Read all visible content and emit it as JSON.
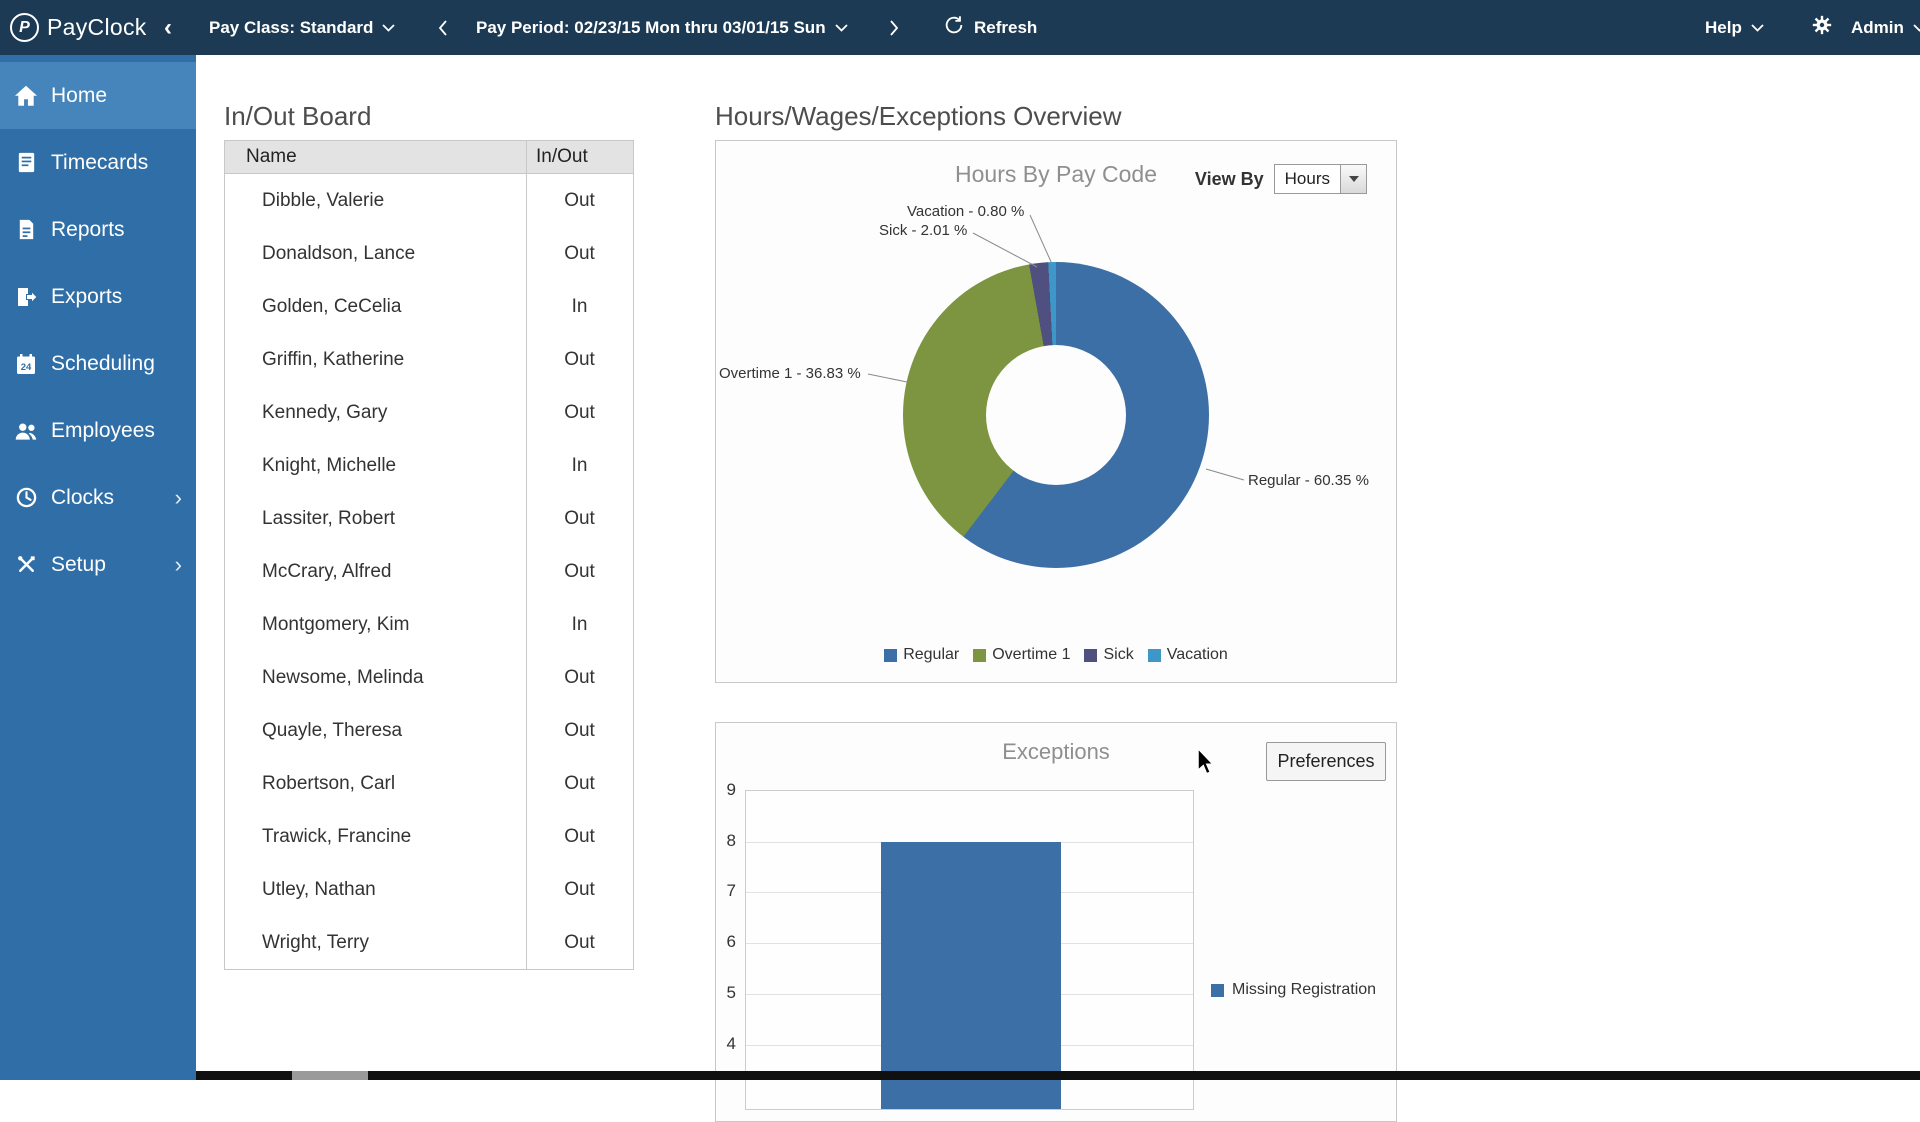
{
  "topbar": {
    "brand": "PayClock",
    "pay_class_label": "Pay Class: Standard",
    "pay_period_label": "Pay Period: 02/23/15 Mon thru 03/01/15 Sun",
    "refresh_label": "Refresh",
    "help_label": "Help",
    "admin_label": "Admin"
  },
  "sidebar": {
    "items": [
      {
        "label": "Home",
        "icon": "home-icon",
        "active": true,
        "chevron": false
      },
      {
        "label": "Timecards",
        "icon": "timecard-icon",
        "active": false,
        "chevron": false
      },
      {
        "label": "Reports",
        "icon": "reports-icon",
        "active": false,
        "chevron": false
      },
      {
        "label": "Exports",
        "icon": "export-icon",
        "active": false,
        "chevron": false
      },
      {
        "label": "Scheduling",
        "icon": "calendar-icon",
        "active": false,
        "chevron": false
      },
      {
        "label": "Employees",
        "icon": "employees-icon",
        "active": false,
        "chevron": false
      },
      {
        "label": "Clocks",
        "icon": "clock-icon",
        "active": false,
        "chevron": true
      },
      {
        "label": "Setup",
        "icon": "tools-icon",
        "active": false,
        "chevron": true
      }
    ]
  },
  "inout_board": {
    "title": "In/Out Board",
    "columns": [
      "Name",
      "In/Out"
    ],
    "rows": [
      {
        "name": "Dibble, Valerie",
        "status": "Out"
      },
      {
        "name": "Donaldson, Lance",
        "status": "Out"
      },
      {
        "name": "Golden, CeCelia",
        "status": "In"
      },
      {
        "name": "Griffin, Katherine",
        "status": "Out"
      },
      {
        "name": "Kennedy, Gary",
        "status": "Out"
      },
      {
        "name": "Knight, Michelle",
        "status": "In"
      },
      {
        "name": "Lassiter, Robert",
        "status": "Out"
      },
      {
        "name": "McCrary, Alfred",
        "status": "Out"
      },
      {
        "name": "Montgomery, Kim",
        "status": "In"
      },
      {
        "name": "Newsome, Melinda",
        "status": "Out"
      },
      {
        "name": "Quayle, Theresa",
        "status": "Out"
      },
      {
        "name": "Robertson, Carl",
        "status": "Out"
      },
      {
        "name": "Trawick, Francine",
        "status": "Out"
      },
      {
        "name": "Utley, Nathan",
        "status": "Out"
      },
      {
        "name": "Wright, Terry",
        "status": "Out"
      }
    ]
  },
  "overview": {
    "title": "Hours/Wages/Exceptions Overview",
    "view_by_label": "View By",
    "view_by_value": "Hours",
    "preferences_label": "Preferences"
  },
  "chart_data": [
    {
      "type": "pie",
      "donut": true,
      "title": "Hours By Pay Code",
      "labels": [
        "Regular",
        "Overtime 1",
        "Sick",
        "Vacation"
      ],
      "values": [
        60.35,
        36.83,
        2.01,
        0.8
      ],
      "unit": "%",
      "colors": [
        "#3c6fa5",
        "#7d9440",
        "#4f5080",
        "#3d97c9"
      ],
      "annotations": [
        "Regular - 60.35 %",
        "Overtime 1 - 36.83 %",
        "Sick - 2.01 %",
        "Vacation - 0.80 %"
      ],
      "legend_position": "bottom"
    },
    {
      "type": "bar",
      "title": "Exceptions",
      "categories": [
        "Missing Registration"
      ],
      "values": [
        8
      ],
      "colors": [
        "#3c6fa5"
      ],
      "yticks": [
        9,
        8,
        7,
        6,
        5,
        4
      ],
      "ylim": [
        4,
        9
      ],
      "grid": true,
      "legend": [
        "Missing Registration"
      ],
      "legend_position": "right"
    }
  ]
}
